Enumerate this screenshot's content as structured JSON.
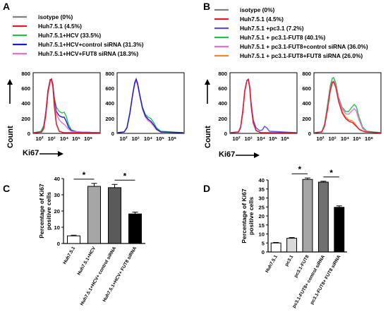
{
  "panels": {
    "A": {
      "letter": "A",
      "legend": [
        {
          "label": "isotype (0%)",
          "color": "#808080"
        },
        {
          "label": "Huh7.5.1 (4.5%)",
          "color": "#e8192c"
        },
        {
          "label": "Huh7.5.1+HCV (33.5%)",
          "color": "#21c44b"
        },
        {
          "label": "Huh7.5.1+HCV+control  siRNA  (31.3%)",
          "color": "#1a1ad4"
        },
        {
          "label": "Huh7.5.1+HCV+FUT8 siRNA (18.3%)",
          "color": "#f06ad6"
        }
      ]
    },
    "B": {
      "letter": "B",
      "legend": [
        {
          "label": "isotype (0%)",
          "color": "#808080"
        },
        {
          "label": "Huh7.5.1 (4.5%)",
          "color": "#e8192c"
        },
        {
          "label": "Huh7.5.1 +pc3.1 (7.2%)",
          "color": "#5a4fe8"
        },
        {
          "label": "Huh7.5.1 + pc3.1-FUT8 (40.1%)",
          "color": "#21c44b"
        },
        {
          "label": "Huh7.5.1 + pc3.1-FUT8+control siRNA (36.0%)",
          "color": "#f06ad6"
        },
        {
          "label": "Huh7.5.1 + pc3.1-FUT8+FUT8 siRNA (26.0%)",
          "color": "#f0852a"
        }
      ]
    },
    "C": {
      "letter": "C"
    },
    "D": {
      "letter": "D"
    }
  },
  "histogram_axes": {
    "y_label": "Count",
    "x_label": "Ki67",
    "y_ticks": [
      "0",
      "200",
      "400",
      "600",
      "800"
    ],
    "x_ticks": [
      "10²",
      "10³",
      "10⁴",
      "10⁵",
      "10⁶"
    ]
  },
  "chart_data": [
    {
      "panel": "C",
      "type": "bar",
      "ylabel": "Percentage of Ki67 positive cells",
      "ylim": [
        0,
        40
      ],
      "yticks": [
        "0",
        "10",
        "20",
        "30",
        "40"
      ],
      "categories": [
        "Huh7.5.1",
        "Huh7.5.1+HCV",
        "Huh7.5.1+HCV+ control siRNA",
        "Huh7.5.1+HCV+ FUT8 siRNA"
      ],
      "values": [
        4.7,
        35.2,
        34.4,
        18.2
      ],
      "errors": [
        0.4,
        1.8,
        2.0,
        1.1
      ],
      "colors": [
        "#ffffff",
        "#a6a6a6",
        "#5a5a5a",
        "#000000"
      ],
      "significance": [
        {
          "from": 0,
          "to": 1,
          "label": "*"
        },
        {
          "from": 2,
          "to": 3,
          "label": "*"
        }
      ]
    },
    {
      "panel": "D",
      "type": "bar",
      "ylabel": "Percentage of Ki67 positive cells",
      "ylim": [
        0,
        40
      ],
      "yticks": [
        "0",
        "5",
        "10",
        "15",
        "20",
        "25",
        "30",
        "35",
        "40"
      ],
      "categories": [
        "Huh7.5.1",
        "pc3.1",
        "pc3.1-FUT8",
        "pc3.1-FUT8+ control siRNA",
        "pc3.1-FUT8+ FUT8 siRNA"
      ],
      "values": [
        5.0,
        7.6,
        40.3,
        38.8,
        24.8
      ],
      "errors": [
        0.3,
        0.4,
        0.8,
        0.5,
        0.8
      ],
      "colors": [
        "#ffffff",
        "#d9d9d9",
        "#a6a6a6",
        "#707070",
        "#000000"
      ],
      "significance": [
        {
          "from": 1,
          "to": 2,
          "label": "*"
        },
        {
          "from": 3,
          "to": 4,
          "label": "*"
        }
      ]
    }
  ]
}
